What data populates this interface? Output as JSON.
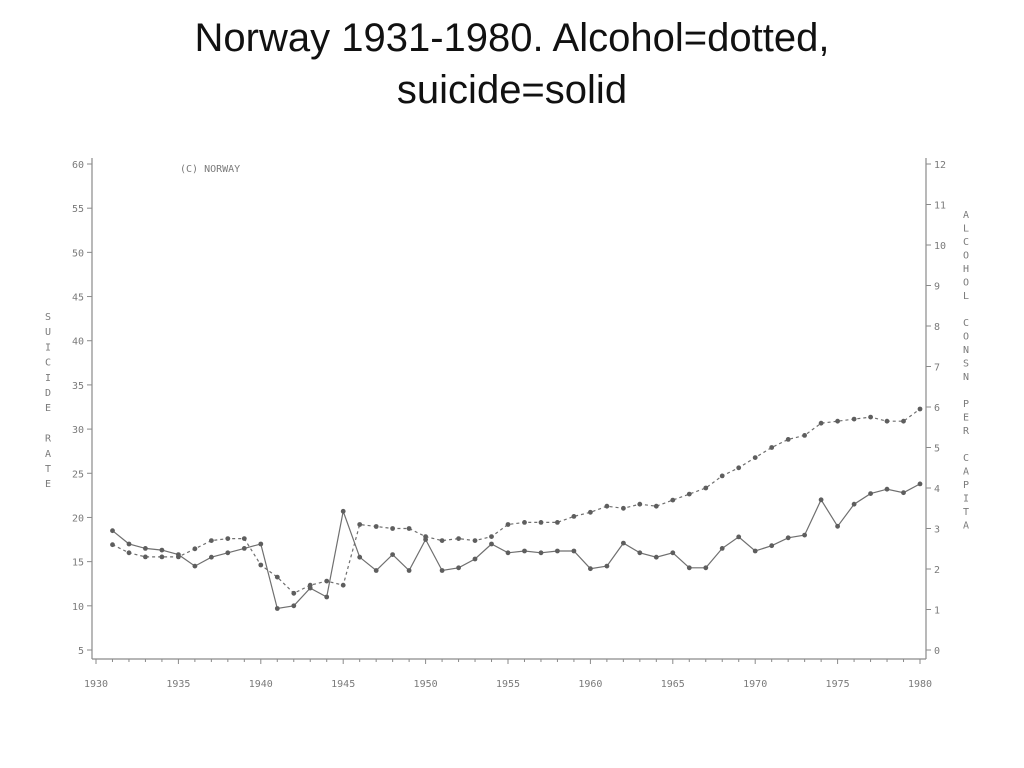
{
  "slide": {
    "title_line1": "Norway 1931-1980. Alcohol=dotted,",
    "title_line2": "suicide=solid"
  },
  "chart_data": {
    "type": "line",
    "annotation": "(C) NORWAY",
    "ylabel": "SUICIDE RATE",
    "y2label": "ALCOHOL CONSN PER CAPITA",
    "xlim": [
      1930,
      1980
    ],
    "ylim": [
      5,
      60
    ],
    "y2lim": [
      0,
      12
    ],
    "x_ticks": [
      1930,
      1935,
      1940,
      1945,
      1950,
      1955,
      1960,
      1965,
      1970,
      1975,
      1980
    ],
    "y_ticks": [
      5,
      10,
      15,
      20,
      25,
      30,
      35,
      40,
      45,
      50,
      55,
      60
    ],
    "y2_ticks": [
      0,
      1,
      2,
      3,
      4,
      5,
      6,
      7,
      8,
      9,
      10,
      11,
      12
    ],
    "grid": false,
    "x": [
      1931,
      1932,
      1933,
      1934,
      1935,
      1936,
      1937,
      1938,
      1939,
      1940,
      1941,
      1942,
      1943,
      1944,
      1945,
      1946,
      1947,
      1948,
      1949,
      1950,
      1951,
      1952,
      1953,
      1954,
      1955,
      1956,
      1957,
      1958,
      1959,
      1960,
      1961,
      1962,
      1963,
      1964,
      1965,
      1966,
      1967,
      1968,
      1969,
      1970,
      1971,
      1972,
      1973,
      1974,
      1975,
      1976,
      1977,
      1978,
      1979,
      1980
    ],
    "series": [
      {
        "name": "suicide",
        "axis": "left",
        "style": "solid",
        "values": [
          18.5,
          17.0,
          16.5,
          16.3,
          15.8,
          14.5,
          15.5,
          16.0,
          16.5,
          17.0,
          9.7,
          10.0,
          12.0,
          11.0,
          20.7,
          15.5,
          14.0,
          15.8,
          14.0,
          17.5,
          14.0,
          14.3,
          15.3,
          17.0,
          16.0,
          16.2,
          16.0,
          16.2,
          16.2,
          14.2,
          14.5,
          17.1,
          16.0,
          15.5,
          16.0,
          14.3,
          14.3,
          16.5,
          17.8,
          16.2,
          16.8,
          17.7,
          18.0,
          22.0,
          19.0,
          21.5,
          22.7,
          23.2,
          22.8,
          23.8
        ]
      },
      {
        "name": "alcohol",
        "axis": "right",
        "style": "dotted",
        "values": [
          2.6,
          2.4,
          2.3,
          2.3,
          2.3,
          2.5,
          2.7,
          2.75,
          2.75,
          2.1,
          1.8,
          1.4,
          1.6,
          1.7,
          1.6,
          3.1,
          3.05,
          3.0,
          3.0,
          2.8,
          2.7,
          2.75,
          2.7,
          2.8,
          3.1,
          3.15,
          3.15,
          3.15,
          3.3,
          3.4,
          3.55,
          3.5,
          3.6,
          3.55,
          3.7,
          3.85,
          4.0,
          4.3,
          4.5,
          4.75,
          5.0,
          5.2,
          5.3,
          5.6,
          5.65,
          5.7,
          5.75,
          5.65,
          5.65,
          5.95
        ]
      }
    ]
  }
}
